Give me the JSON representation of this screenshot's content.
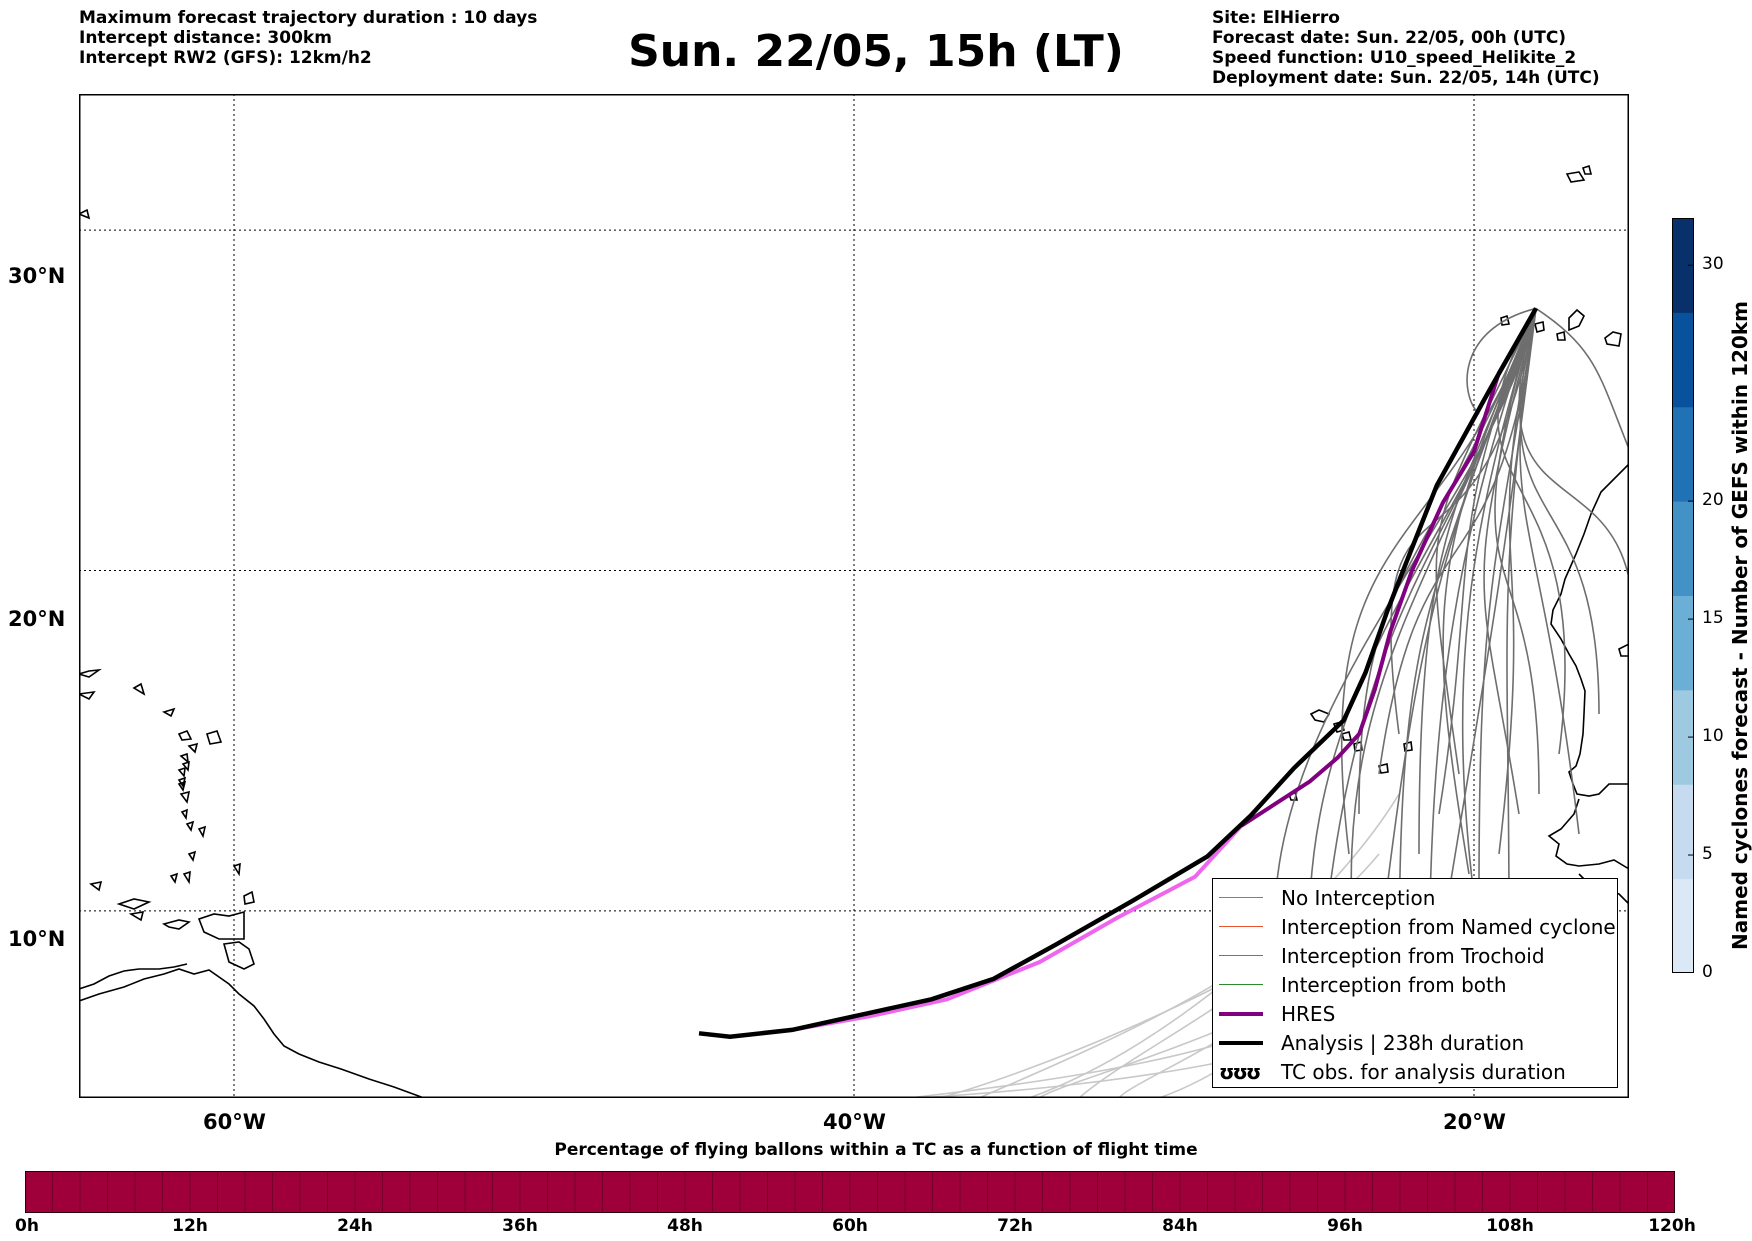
{
  "header_left": [
    "Maximum forecast trajectory duration : 10 days",
    "Intercept distance: 300km",
    "Intercept RW2 (GFS):  12km/h2"
  ],
  "title": "Sun. 22/05, 15h (LT)",
  "header_right": [
    "Site: ElHierro",
    "Forecast date: Sun. 22/05, 00h (UTC)",
    "Speed function: U10_speed_Helikite_2",
    "Deployment date: Sun. 22/05, 14h (UTC)"
  ],
  "map": {
    "lon_range": [
      -65,
      -15
    ],
    "lat_range": [
      4.5,
      34
    ],
    "lon_ticks": [
      {
        "value": -60,
        "label": "60°W"
      },
      {
        "value": -40,
        "label": "40°W"
      },
      {
        "value": -20,
        "label": "20°W"
      }
    ],
    "lat_ticks": [
      {
        "value": 30,
        "label": "30°N"
      },
      {
        "value": 20,
        "label": "20°N"
      },
      {
        "value": 10,
        "label": "10°N"
      }
    ],
    "site": {
      "name": "ElHierro",
      "lon": -18.0,
      "lat": 27.7
    },
    "analysis_track": [
      [
        -18.0,
        27.7
      ],
      [
        -19.5,
        25.3
      ],
      [
        -21.2,
        22.5
      ],
      [
        -22.2,
        20.2
      ],
      [
        -22.8,
        18.8
      ],
      [
        -23.5,
        17.0
      ],
      [
        -24.2,
        15.6
      ],
      [
        -25.8,
        14.2
      ],
      [
        -27.2,
        12.8
      ],
      [
        -28.6,
        11.6
      ],
      [
        -31.0,
        10.3
      ],
      [
        -33.5,
        9.0
      ],
      [
        -35.5,
        8.0
      ],
      [
        -37.5,
        7.4
      ],
      [
        -39.5,
        7.0
      ],
      [
        -42.0,
        6.5
      ],
      [
        -44.0,
        6.3
      ],
      [
        -45.0,
        6.4
      ]
    ],
    "hres_track": [
      [
        -18.0,
        27.7
      ],
      [
        -19.2,
        25.8
      ],
      [
        -20.0,
        23.5
      ],
      [
        -21.0,
        22.0
      ],
      [
        -22.0,
        20.0
      ],
      [
        -22.7,
        18.2
      ],
      [
        -23.2,
        16.5
      ],
      [
        -23.7,
        15.2
      ],
      [
        -24.4,
        14.5
      ],
      [
        -25.3,
        13.8
      ],
      [
        -27.5,
        12.5
      ],
      [
        -29.0,
        11.0
      ],
      [
        -31.5,
        9.8
      ],
      [
        -34.0,
        8.5
      ],
      [
        -37.0,
        7.4
      ],
      [
        -39.5,
        6.9
      ],
      [
        -42.0,
        6.5
      ],
      [
        -44.0,
        6.3
      ]
    ],
    "colors": {
      "hres_early": "#800080",
      "hres_late": "#ee66ee",
      "analysis": "#000000",
      "ensemble": "#6e6e6e",
      "ensemble_faded": "#c8c8c8"
    }
  },
  "legend": [
    {
      "label": "No Interception",
      "color": "#808080",
      "width": 1.5
    },
    {
      "label": "Interception from Named cyclone",
      "color": "#e8542b",
      "width": 1.5
    },
    {
      "label": "Interception from Trochoid",
      "color": "#808020",
      "width": 1.5
    },
    {
      "label": "Interception from both",
      "color": "#2b8a2b",
      "width": 1.5
    },
    {
      "label": "HRES",
      "color": "#800080",
      "width": 4
    },
    {
      "label": "Analysis | 238h duration",
      "color": "#000000",
      "width": 4
    },
    {
      "label": "TC obs. for analysis duration",
      "symbol": "ʊʊʊ"
    }
  ],
  "colorbar": {
    "label": "Named cyclones forecast - Number of GEFS within 120km",
    "ticks": [
      0,
      5,
      10,
      15,
      20,
      30
    ],
    "range": [
      0,
      32
    ]
  },
  "flight_bar": {
    "title": "Percentage of flying ballons within a TC as a function of flight time",
    "ticks": [
      "0h",
      "12h",
      "24h",
      "36h",
      "48h",
      "60h",
      "72h",
      "84h",
      "96h",
      "108h",
      "120h"
    ],
    "color": "#a0003a"
  }
}
